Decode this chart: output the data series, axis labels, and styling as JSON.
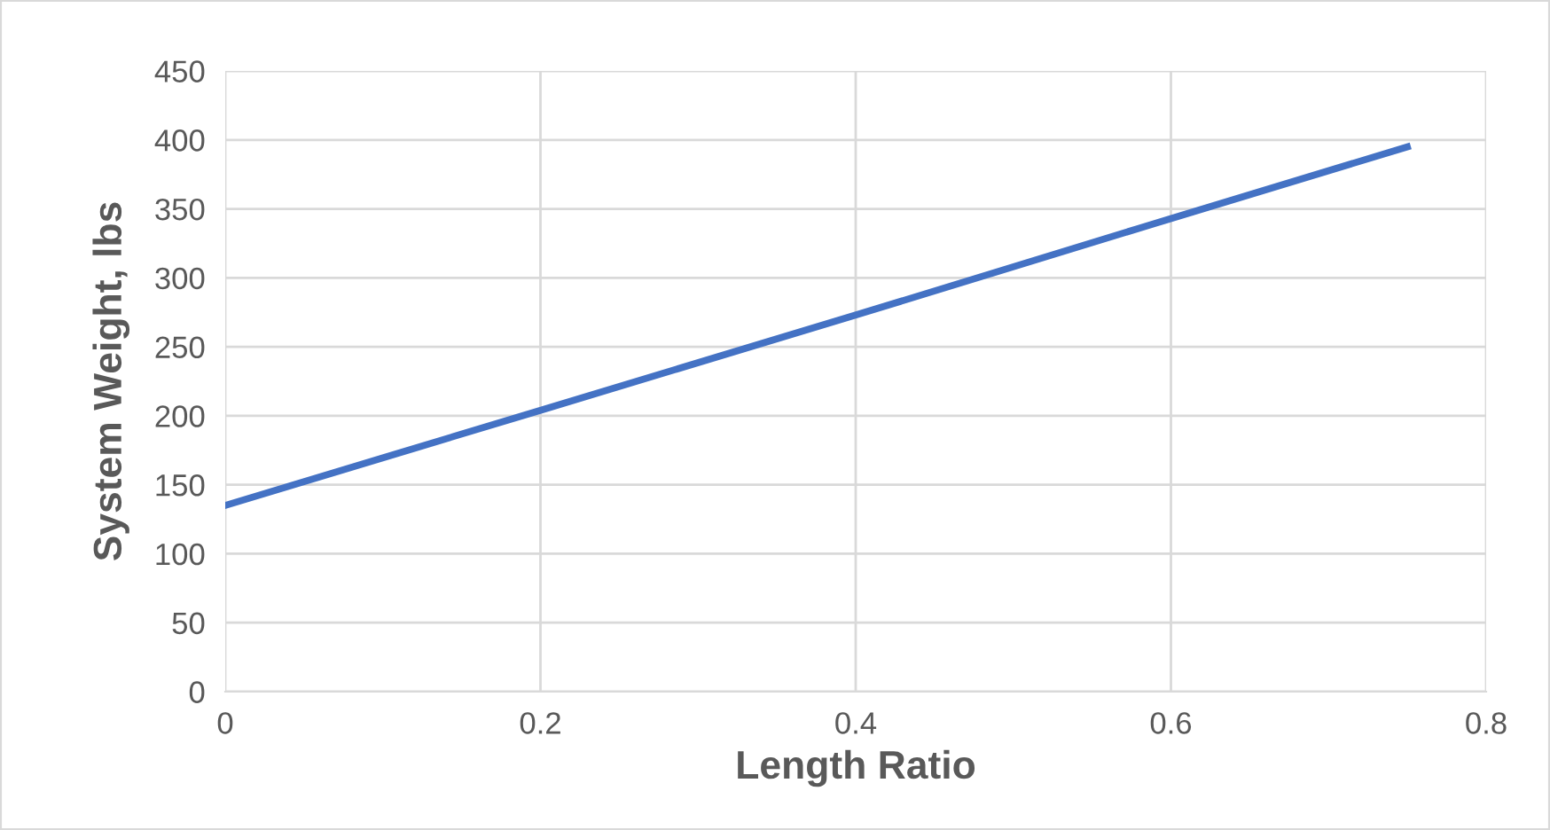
{
  "chart_data": {
    "type": "line",
    "xlabel": "Length Ratio",
    "ylabel": "System Weight, lbs",
    "x": [
      0,
      0.2,
      0.4,
      0.6,
      0.75
    ],
    "series": [
      {
        "color": "#4472c4",
        "values": [
          135,
          204,
          273,
          343,
          395
        ]
      }
    ],
    "xlim": [
      0,
      0.8
    ],
    "xticks": [
      0,
      0.2,
      0.4,
      0.6,
      0.8
    ],
    "ylim": [
      0,
      450
    ],
    "yticks": [
      0,
      50,
      100,
      150,
      200,
      250,
      300,
      350,
      400,
      450
    ],
    "grid": true,
    "marker": "none",
    "line_style": "solid",
    "legend": false
  }
}
